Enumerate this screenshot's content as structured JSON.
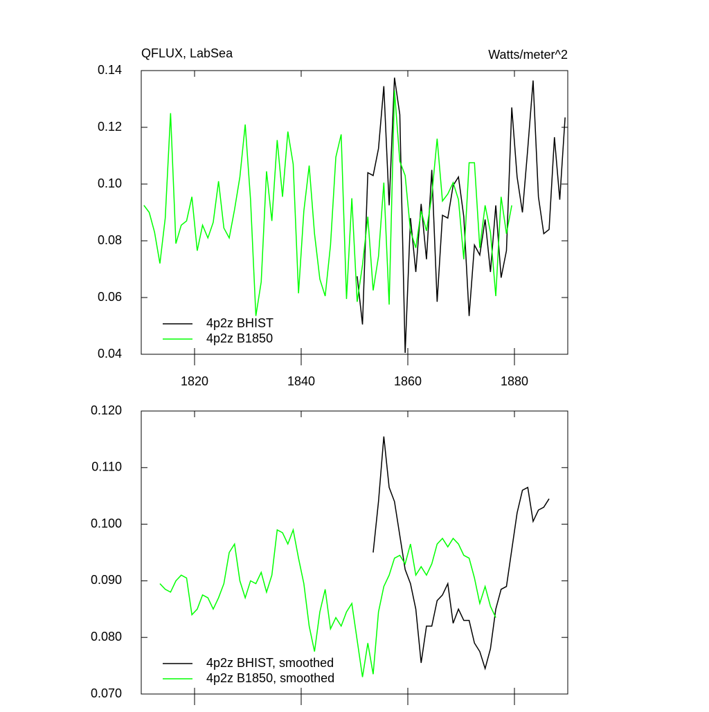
{
  "chart_data": [
    {
      "type": "line",
      "title": "QFLUX, LabSea",
      "units": "Watts/meter^2",
      "xlim": [
        1810,
        1890
      ],
      "xticks": [
        1820,
        1840,
        1860,
        1880
      ],
      "ylim": [
        0.04,
        0.14
      ],
      "yticks": [
        0.04,
        0.06,
        0.08,
        {
          "value": 0.1,
          "label": "0.10"
        },
        0.12,
        0.14
      ],
      "legend": "lower left",
      "series": [
        {
          "name": "4p2z BHIST",
          "color": "#000000",
          "x": [
            1850.5,
            1851.5,
            1852.5,
            1853.5,
            1854.5,
            1855.5,
            1856.5,
            1857.5,
            1858.5,
            1859.5,
            1860.5,
            1861.5,
            1862.5,
            1863.5,
            1864.5,
            1865.5,
            1866.5,
            1867.5,
            1868.5,
            1869.5,
            1870.5,
            1871.5,
            1872.5,
            1873.5,
            1874.5,
            1875.5,
            1876.5,
            1877.5,
            1878.5,
            1879.5,
            1880.5,
            1881.5,
            1882.5,
            1883.5,
            1884.5,
            1885.5,
            1886.5,
            1887.5,
            1888.5,
            1889.5
          ],
          "values": [
            0.0675,
            0.0505,
            0.104,
            0.103,
            0.1125,
            0.1345,
            0.0925,
            0.1375,
            0.1245,
            0.0405,
            0.088,
            0.069,
            0.093,
            0.0735,
            0.105,
            0.0585,
            0.089,
            0.088,
            0.0995,
            0.1025,
            0.0885,
            0.0535,
            0.0785,
            0.075,
            0.0875,
            0.069,
            0.0925,
            0.067,
            0.0765,
            0.127,
            0.1025,
            0.09,
            0.1125,
            0.1365,
            0.0955,
            0.0825,
            0.084,
            0.1165,
            0.0945,
            0.1235
          ]
        },
        {
          "name": "4p2z B1850",
          "color": "#00ff00",
          "x": [
            1810.5,
            1811.5,
            1812.5,
            1813.5,
            1814.5,
            1815.5,
            1816.5,
            1817.5,
            1818.5,
            1819.5,
            1820.5,
            1821.5,
            1822.5,
            1823.5,
            1824.5,
            1825.5,
            1826.5,
            1827.5,
            1828.5,
            1829.5,
            1830.5,
            1831.5,
            1832.5,
            1833.5,
            1834.5,
            1835.5,
            1836.5,
            1837.5,
            1838.5,
            1839.5,
            1840.5,
            1841.5,
            1842.5,
            1843.5,
            1844.5,
            1845.5,
            1846.5,
            1847.5,
            1848.5,
            1849.5,
            1850.5,
            1851.5,
            1852.5,
            1853.5,
            1854.5,
            1855.5,
            1856.5,
            1857.5,
            1858.5,
            1859.5,
            1860.5,
            1861.5,
            1862.5,
            1863.5,
            1864.5,
            1865.5,
            1866.5,
            1867.5,
            1868.5,
            1869.5,
            1870.5,
            1871.5,
            1872.5,
            1873.5,
            1874.5,
            1875.5,
            1876.5,
            1877.5,
            1878.5,
            1879.5
          ],
          "values": [
            0.0925,
            0.09,
            0.083,
            0.072,
            0.088,
            0.125,
            0.079,
            0.0855,
            0.087,
            0.0955,
            0.0765,
            0.0855,
            0.081,
            0.0865,
            0.101,
            0.0845,
            0.081,
            0.091,
            0.1025,
            0.121,
            0.0945,
            0.0535,
            0.0655,
            0.1045,
            0.087,
            0.1155,
            0.0955,
            0.1185,
            0.107,
            0.0615,
            0.0905,
            0.1065,
            0.0825,
            0.0665,
            0.0605,
            0.0785,
            0.1095,
            0.1175,
            0.0595,
            0.095,
            0.0585,
            0.0715,
            0.0885,
            0.0625,
            0.0745,
            0.1005,
            0.0575,
            0.133,
            0.108,
            0.103,
            0.0835,
            0.0775,
            0.0905,
            0.0835,
            0.096,
            0.116,
            0.094,
            0.0965,
            0.1005,
            0.0945,
            0.0735,
            0.1075,
            0.1075,
            0.0775,
            0.0925,
            0.083,
            0.0605,
            0.0955,
            0.0825,
            0.0925
          ]
        }
      ]
    },
    {
      "type": "line",
      "xlim": [
        1810,
        1890
      ],
      "xticks": [
        1820,
        1840,
        1860,
        1880
      ],
      "ylim": [
        0.07,
        0.12
      ],
      "yticks": [
        {
          "value": 0.07,
          "label": "0.070"
        },
        {
          "value": 0.08,
          "label": "0.080"
        },
        {
          "value": 0.09,
          "label": "0.090"
        },
        {
          "value": 0.1,
          "label": "0.100"
        },
        {
          "value": 0.11,
          "label": "0.110"
        },
        {
          "value": 0.12,
          "label": "0.120"
        }
      ],
      "legend": "lower left",
      "series": [
        {
          "name": "4p2z BHIST, smoothed",
          "color": "#000000",
          "x": [
            1853.5,
            1854.5,
            1855.5,
            1856.5,
            1857.5,
            1858.5,
            1859.5,
            1860.5,
            1861.5,
            1862.5,
            1863.5,
            1864.5,
            1865.5,
            1866.5,
            1867.5,
            1868.5,
            1869.5,
            1870.5,
            1871.5,
            1872.5,
            1873.5,
            1874.5,
            1875.5,
            1876.5,
            1877.5,
            1878.5,
            1879.5,
            1880.5,
            1881.5,
            1882.5,
            1883.5,
            1884.5,
            1885.5,
            1886.5
          ],
          "values": [
            0.095,
            0.104,
            0.1155,
            0.1065,
            0.104,
            0.098,
            0.092,
            0.0895,
            0.085,
            0.0755,
            0.082,
            0.082,
            0.0865,
            0.0875,
            0.0895,
            0.0825,
            0.085,
            0.083,
            0.083,
            0.079,
            0.0775,
            0.0745,
            0.078,
            0.085,
            0.0885,
            0.089,
            0.0955,
            0.102,
            0.106,
            0.1065,
            0.1005,
            0.1025,
            0.103,
            0.1045
          ]
        },
        {
          "name": "4p2z B1850, smoothed",
          "color": "#00ff00",
          "x": [
            1813.5,
            1814.5,
            1815.5,
            1816.5,
            1817.5,
            1818.5,
            1819.5,
            1820.5,
            1821.5,
            1822.5,
            1823.5,
            1824.5,
            1825.5,
            1826.5,
            1827.5,
            1828.5,
            1829.5,
            1830.5,
            1831.5,
            1832.5,
            1833.5,
            1834.5,
            1835.5,
            1836.5,
            1837.5,
            1838.5,
            1839.5,
            1840.5,
            1841.5,
            1842.5,
            1843.5,
            1844.5,
            1845.5,
            1846.5,
            1847.5,
            1848.5,
            1849.5,
            1850.5,
            1851.5,
            1852.5,
            1853.5,
            1854.5,
            1855.5,
            1856.5,
            1857.5,
            1858.5,
            1859.5,
            1860.5,
            1861.5,
            1862.5,
            1863.5,
            1864.5,
            1865.5,
            1866.5,
            1867.5,
            1868.5,
            1869.5,
            1870.5,
            1871.5,
            1872.5,
            1873.5,
            1874.5,
            1875.5,
            1876.5
          ],
          "values": [
            0.0895,
            0.0885,
            0.088,
            0.09,
            0.091,
            0.0905,
            0.084,
            0.085,
            0.0875,
            0.087,
            0.085,
            0.087,
            0.0895,
            0.095,
            0.0965,
            0.09,
            0.087,
            0.09,
            0.0895,
            0.0915,
            0.088,
            0.091,
            0.099,
            0.0985,
            0.0965,
            0.099,
            0.094,
            0.0895,
            0.082,
            0.0775,
            0.0845,
            0.0885,
            0.0815,
            0.0835,
            0.082,
            0.0845,
            0.086,
            0.0795,
            0.073,
            0.079,
            0.0735,
            0.0845,
            0.089,
            0.091,
            0.094,
            0.0945,
            0.093,
            0.0965,
            0.091,
            0.0925,
            0.091,
            0.093,
            0.0965,
            0.0975,
            0.096,
            0.0975,
            0.0965,
            0.0945,
            0.094,
            0.0905,
            0.086,
            0.089,
            0.0855,
            0.0835
          ]
        }
      ]
    }
  ]
}
